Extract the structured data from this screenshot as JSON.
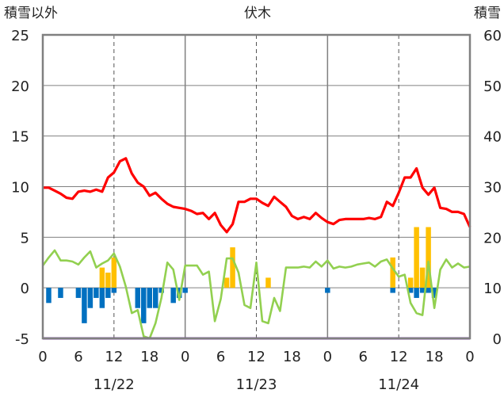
{
  "chart_data": {
    "type": "bar+line",
    "title": "伏木",
    "left_axis_label": "積雪以外",
    "right_axis_label": "積雪",
    "left_ylim": [
      -5,
      25
    ],
    "left_ticks": [
      "25",
      "20",
      "15",
      "10",
      "5",
      "0",
      "-5"
    ],
    "right_ylim": [
      0,
      60
    ],
    "right_ticks": [
      "60",
      "50",
      "40",
      "30",
      "20",
      "10",
      "0"
    ],
    "x_tick_labels": [
      "0",
      "6",
      "12",
      "18",
      "0",
      "6",
      "12",
      "18",
      "0",
      "6",
      "12",
      "18",
      "0"
    ],
    "date_labels": [
      "11/22",
      "11/23",
      "11/24"
    ],
    "grid": true,
    "colors": {
      "temperature": "#ff0000",
      "wind": "#92d050",
      "precipitation": "#ffc000",
      "sunshine_negative": "#0070c0",
      "snow_depth": "#7030a0",
      "frame": "#808080"
    },
    "series": [
      {
        "type": "line",
        "axis": "left",
        "color_key": "temperature",
        "values": [
          9.9,
          9.9,
          9.6,
          9.3,
          8.9,
          8.8,
          9.5,
          9.6,
          9.5,
          9.7,
          9.5,
          10.9,
          11.4,
          12.5,
          12.8,
          11.3,
          10.4,
          10.0,
          9.1,
          9.4,
          8.8,
          8.3,
          8.0,
          7.9,
          7.8,
          7.6,
          7.3,
          7.4,
          6.8,
          7.4,
          6.2,
          5.5,
          6.3,
          8.5,
          8.5,
          8.8,
          8.8,
          8.4,
          8.1,
          9.0,
          8.5,
          8.0,
          7.1,
          6.8,
          7.0,
          6.8,
          7.4,
          6.9,
          6.5,
          6.3,
          6.7,
          6.8,
          6.8,
          6.8,
          6.8,
          6.9,
          6.8,
          7.0,
          8.5,
          8.1,
          9.4,
          10.9,
          10.9,
          11.8,
          9.9,
          9.2,
          9.9,
          7.9,
          7.8,
          7.5,
          7.5,
          7.3,
          6.0
        ]
      },
      {
        "type": "line",
        "axis": "left",
        "color_key": "wind",
        "values": [
          2.2,
          3.0,
          3.7,
          2.7,
          2.7,
          2.6,
          2.3,
          3.0,
          3.6,
          2.0,
          2.4,
          2.7,
          3.4,
          2.1,
          0.1,
          -2.5,
          -2.2,
          -4.8,
          -5.0,
          -3.5,
          -1.0,
          2.5,
          1.8,
          -1.2,
          2.2,
          2.2,
          2.2,
          1.3,
          1.6,
          -3.3,
          -1.1,
          2.9,
          2.9,
          1.5,
          -1.7,
          -2.0,
          2.5,
          -3.3,
          -3.5,
          -1.0,
          -2.3,
          2.0,
          2.0,
          2.0,
          2.1,
          2.0,
          2.6,
          2.1,
          2.7,
          1.9,
          2.1,
          2.0,
          2.1,
          2.3,
          2.4,
          2.5,
          2.1,
          2.6,
          2.8,
          1.9,
          1.1,
          1.3,
          -1.5,
          -2.5,
          -2.7,
          2.6,
          -2.0,
          1.8,
          2.8,
          2.0,
          2.4,
          2.0,
          2.1
        ]
      },
      {
        "type": "bar",
        "axis": "left",
        "color_key": "precipitation",
        "values": [
          [
            10,
            2
          ],
          [
            11,
            1.5
          ],
          [
            12,
            3
          ],
          [
            31,
            1
          ],
          [
            32,
            4
          ],
          [
            38,
            1
          ],
          [
            59,
            3
          ],
          [
            62,
            1
          ],
          [
            63,
            6
          ],
          [
            64,
            2
          ],
          [
            65,
            6
          ]
        ]
      },
      {
        "type": "bar",
        "axis": "left",
        "color_key": "sunshine_negative",
        "values": [
          [
            1,
            -1.5
          ],
          [
            3,
            -1
          ],
          [
            6,
            -1
          ],
          [
            7,
            -3.5
          ],
          [
            8,
            -2
          ],
          [
            9,
            -1
          ],
          [
            10,
            -2
          ],
          [
            11,
            -1
          ],
          [
            12,
            -0.5
          ],
          [
            16,
            -2
          ],
          [
            17,
            -3.5
          ],
          [
            18,
            -2
          ],
          [
            19,
            -2
          ],
          [
            20,
            -0.5
          ],
          [
            22,
            -1.5
          ],
          [
            23,
            -1
          ],
          [
            24,
            -0.5
          ],
          [
            48,
            -0.5
          ],
          [
            59,
            -0.5
          ],
          [
            62,
            -0.5
          ],
          [
            63,
            -1
          ],
          [
            64,
            -0.5
          ],
          [
            65,
            -0.5
          ],
          [
            66,
            -1
          ]
        ]
      },
      {
        "type": "line",
        "axis": "right",
        "color_key": "snow_depth",
        "values": [
          0,
          0
        ]
      }
    ]
  }
}
